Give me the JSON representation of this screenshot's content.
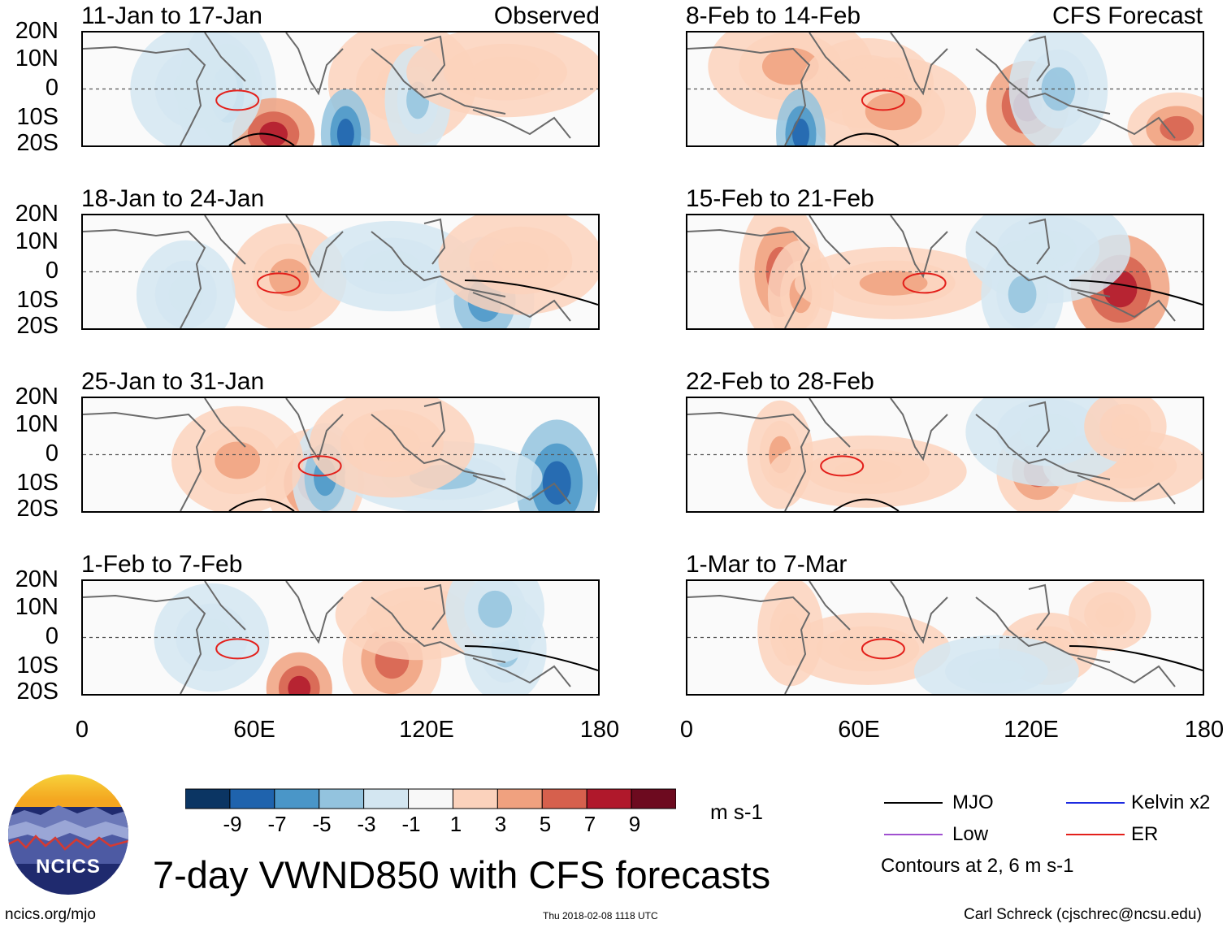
{
  "panels": {
    "left": [
      {
        "title": "11-Jan to 17-Jan",
        "tag": "Observed"
      },
      {
        "title": "18-Jan to 24-Jan",
        "tag": ""
      },
      {
        "title": "25-Jan to 31-Jan",
        "tag": ""
      },
      {
        "title": "1-Feb to 7-Feb",
        "tag": ""
      }
    ],
    "right": [
      {
        "title": "8-Feb to 14-Feb",
        "tag": "CFS Forecast"
      },
      {
        "title": "15-Feb to 21-Feb",
        "tag": ""
      },
      {
        "title": "22-Feb to 28-Feb",
        "tag": ""
      },
      {
        "title": "1-Mar to 7-Mar",
        "tag": ""
      }
    ]
  },
  "lat_labels": [
    "20N",
    "10N",
    "0",
    "10S",
    "20S"
  ],
  "lon_labels": [
    "0",
    "60E",
    "120E",
    "180"
  ],
  "colorbar": {
    "labels": [
      "-9",
      "-7",
      "-5",
      "-3",
      "-1",
      "1",
      "3",
      "5",
      "7",
      "9"
    ],
    "colors": [
      "#0b3563",
      "#1f63ad",
      "#4a96c8",
      "#93c3de",
      "#d3e6f1",
      "#f8f8f8",
      "#fbd2bc",
      "#f0a17f",
      "#d6604d",
      "#b0182b",
      "#6d0a1f"
    ],
    "units": "m s-1"
  },
  "legend": {
    "mjo": {
      "label": "MJO",
      "color": "#000000"
    },
    "kelvin": {
      "label": "Kelvin x2",
      "color": "#1d2be0"
    },
    "low": {
      "label": "Low",
      "color": "#a050d0"
    },
    "er": {
      "label": "ER",
      "color": "#e3201b"
    },
    "note": "Contours at 2, 6 m s-1"
  },
  "title": "7-day VWND850 with CFS forecasts",
  "logo": {
    "text": "NCICS"
  },
  "footer": {
    "website": "ncics.org/mjo",
    "timestamp": "Thu 2018-02-08 1118 UTC",
    "credit": "Carl Schreck (cjschrec@ncsu.edu)"
  }
}
